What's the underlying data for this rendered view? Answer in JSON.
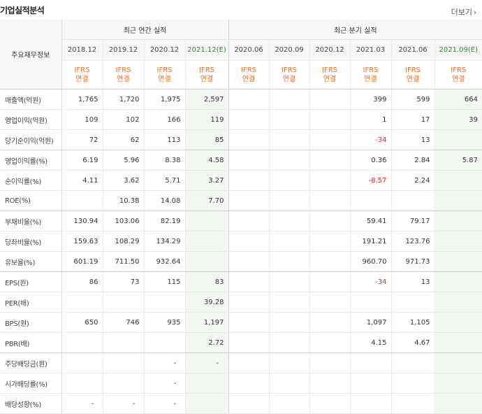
{
  "header": {
    "title": "기업실적분석",
    "more_label": "더보기",
    "more_icon": "chevron-right-icon"
  },
  "table": {
    "row_label_header": "주요재무정보",
    "group_annual": "최근 연간 실적",
    "group_quarter": "최근 분기 실적",
    "periods": [
      "2018.12",
      "2019.12",
      "2020.12",
      "2021.12(E)",
      "2020.06",
      "2020.09",
      "2020.12",
      "2021.03",
      "2021.06",
      "2021.09(E)"
    ],
    "standard": [
      "IFRS",
      "연결"
    ],
    "rows": [
      {
        "label": "매출액(억원)",
        "values": [
          "1,765",
          "1,720",
          "1,975",
          "2,597",
          "",
          "",
          "",
          "399",
          "599",
          "664"
        ]
      },
      {
        "label": "영업이익(억원)",
        "values": [
          "109",
          "102",
          "166",
          "119",
          "",
          "",
          "",
          "1",
          "17",
          "39"
        ]
      },
      {
        "label": "당기순이익(억원)",
        "values": [
          "72",
          "62",
          "113",
          "85",
          "",
          "",
          "",
          "-34",
          "13",
          ""
        ]
      },
      {
        "label": "영업이익률(%)",
        "values": [
          "6.19",
          "5.96",
          "8.38",
          "4.58",
          "",
          "",
          "",
          "0.36",
          "2.84",
          "5.87"
        ]
      },
      {
        "label": "순이익률(%)",
        "values": [
          "4.11",
          "3.62",
          "5.71",
          "3.27",
          "",
          "",
          "",
          "-8.57",
          "2.24",
          ""
        ]
      },
      {
        "label": "ROE(%)",
        "values": [
          "",
          "10.38",
          "14.08",
          "7.70",
          "",
          "",
          "",
          "",
          "",
          ""
        ]
      },
      {
        "label": "부채비율(%)",
        "values": [
          "130.94",
          "103.06",
          "82.19",
          "",
          "",
          "",
          "",
          "59.41",
          "79.17",
          ""
        ]
      },
      {
        "label": "당좌비율(%)",
        "values": [
          "159.63",
          "108.29",
          "134.29",
          "",
          "",
          "",
          "",
          "191.21",
          "123.76",
          ""
        ]
      },
      {
        "label": "유보율(%)",
        "values": [
          "601.19",
          "711.50",
          "932.64",
          "",
          "",
          "",
          "",
          "960.70",
          "971.73",
          ""
        ]
      },
      {
        "label": "EPS(원)",
        "values": [
          "86",
          "73",
          "115",
          "83",
          "",
          "",
          "",
          "-34",
          "13",
          ""
        ]
      },
      {
        "label": "PER(배)",
        "values": [
          "",
          "",
          "",
          "39.28",
          "",
          "",
          "",
          "",
          "",
          ""
        ]
      },
      {
        "label": "BPS(원)",
        "values": [
          "650",
          "746",
          "935",
          "1,197",
          "",
          "",
          "",
          "1,097",
          "1,105",
          ""
        ]
      },
      {
        "label": "PBR(배)",
        "values": [
          "",
          "",
          "",
          "2.72",
          "",
          "",
          "",
          "4.15",
          "4.67",
          ""
        ]
      },
      {
        "label": "주당배당금(원)",
        "values": [
          "",
          "",
          "-",
          "-",
          "",
          "",
          "",
          "",
          "",
          ""
        ]
      },
      {
        "label": "시가배당률(%)",
        "values": [
          "",
          "",
          "-",
          "",
          "",
          "",
          "",
          "",
          "",
          ""
        ]
      },
      {
        "label": "배당성향(%)",
        "values": [
          "-",
          "-",
          "-",
          "",
          "",
          "",
          "",
          "",
          "",
          ""
        ]
      }
    ]
  },
  "colors": {
    "accent_orange": "#f06a1d",
    "negative_red": "#e2262a",
    "estimate_green": "#2a8a2a",
    "estimate_bg": "#f2f8f1"
  }
}
